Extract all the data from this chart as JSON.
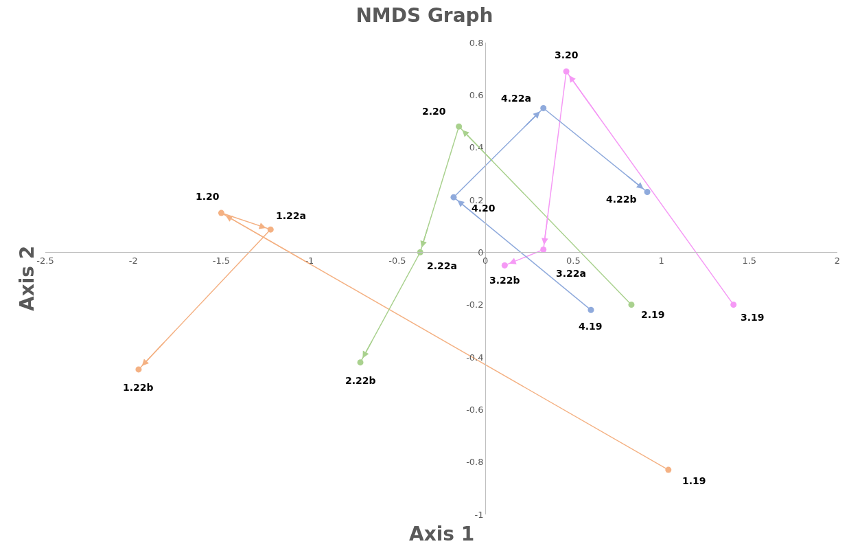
{
  "chart_data": {
    "type": "line",
    "title": "NMDS Graph",
    "xlabel": "Axis 1",
    "ylabel": "Axis 2",
    "xlim": [
      -2.5,
      2
    ],
    "xticks": [
      -2.5,
      -2,
      -1.5,
      -1,
      -0.5,
      0,
      0.5,
      1,
      1.5,
      2
    ],
    "ylim": [
      -1,
      0.8
    ],
    "yticks": [
      -1,
      -0.8,
      -0.6,
      -0.4,
      -0.2,
      0,
      0.2,
      0.4,
      0.6,
      0.8
    ],
    "marker": "circle",
    "line_style": "solid",
    "series": [
      {
        "color": "#f4b183",
        "x": [
          1.04,
          -1.5,
          -1.22,
          -1.97
        ],
        "values": [
          -0.83,
          0.15,
          0.087,
          -0.447
        ]
      },
      {
        "color": "#a9d18e",
        "x": [
          0.83,
          -0.15,
          -0.37,
          -0.71
        ],
        "values": [
          -0.2,
          0.48,
          0.0,
          -0.42
        ]
      },
      {
        "color": "#f599f5",
        "x": [
          1.41,
          0.46,
          0.33,
          0.11
        ],
        "values": [
          -0.2,
          0.69,
          0.01,
          -0.05
        ]
      },
      {
        "color": "#8faadc",
        "x": [
          0.6,
          -0.18,
          0.33,
          0.92
        ],
        "values": [
          -0.22,
          0.21,
          0.55,
          0.23
        ]
      }
    ],
    "annotations": [
      {
        "text": "1.19",
        "x": 1.04,
        "y": -0.83
      },
      {
        "text": "1.20",
        "x": -1.5,
        "y": 0.15
      },
      {
        "text": "1.22a",
        "x": -1.22,
        "y": 0.087
      },
      {
        "text": "1.22b",
        "x": -1.97,
        "y": -0.447
      },
      {
        "text": "2.19",
        "x": 0.83,
        "y": -0.2
      },
      {
        "text": "2.20",
        "x": -0.15,
        "y": 0.48
      },
      {
        "text": "2.22a",
        "x": -0.37,
        "y": 0.0
      },
      {
        "text": "2.22b",
        "x": -0.71,
        "y": -0.42
      },
      {
        "text": "3.19",
        "x": 1.41,
        "y": -0.2
      },
      {
        "text": "3.20",
        "x": 0.46,
        "y": 0.69
      },
      {
        "text": "3.22a",
        "x": 0.33,
        "y": 0.01
      },
      {
        "text": "3.22b",
        "x": 0.11,
        "y": -0.05
      },
      {
        "text": "4.19",
        "x": 0.6,
        "y": -0.22
      },
      {
        "text": "4.20",
        "x": -0.18,
        "y": 0.21
      },
      {
        "text": "4.22a",
        "x": 0.33,
        "y": 0.55
      },
      {
        "text": "4.22b",
        "x": 0.92,
        "y": 0.23
      }
    ]
  }
}
